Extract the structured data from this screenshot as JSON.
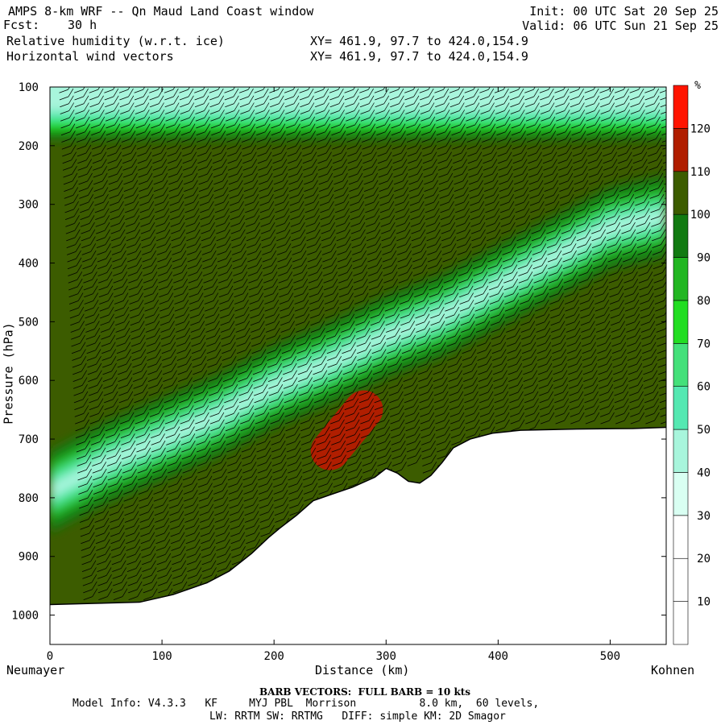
{
  "header": {
    "title": "AMPS 8-km WRF -- Qn Maud Land Coast window",
    "fcst_label": "Fcst:",
    "fcst_value": "30 h",
    "field1": "Relative humidity (w.r.t. ice)",
    "field2": "Horizontal wind vectors",
    "xy1": "XY= 461.9, 97.7 to 424.0,154.9",
    "xy2": "XY= 461.9, 97.7 to 424.0,154.9",
    "init": "Init: 00 UTC Sat 20 Sep 25",
    "valid": "Valid: 06 UTC Sun 21 Sep 25"
  },
  "chart_data": {
    "type": "heatmap",
    "title": "Relative humidity (w.r.t. ice) and horizontal wind vectors cross section",
    "xlabel": "Distance (km)",
    "ylabel": "Pressure (hPa)",
    "x_range": [
      0,
      550
    ],
    "y_range": [
      100,
      1050
    ],
    "x_ticks": [
      0,
      100,
      200,
      300,
      400,
      500
    ],
    "y_ticks": [
      100,
      200,
      300,
      400,
      500,
      600,
      700,
      800,
      900,
      1000
    ],
    "x_start_label": "Neumayer",
    "x_end_label": "Kohnen",
    "colorbar": {
      "unit": "%",
      "levels": [
        10,
        20,
        30,
        40,
        50,
        60,
        70,
        80,
        90,
        100,
        110,
        120
      ],
      "colors": [
        "#ffffff",
        "#ffffff",
        "#ffffff",
        "#d9fff2",
        "#a8f5dc",
        "#55e8b2",
        "#44e07a",
        "#22dd22",
        "#22b622",
        "#127a12",
        "#3c5c00",
        "#b01e00",
        "#ff1400"
      ]
    },
    "terrain_surface": [
      [
        0,
        982
      ],
      [
        40,
        980
      ],
      [
        80,
        978
      ],
      [
        110,
        965
      ],
      [
        140,
        945
      ],
      [
        160,
        925
      ],
      [
        180,
        895
      ],
      [
        195,
        868
      ],
      [
        205,
        852
      ],
      [
        220,
        830
      ],
      [
        235,
        805
      ],
      [
        250,
        795
      ],
      [
        270,
        782
      ],
      [
        290,
        765
      ],
      [
        300,
        750
      ],
      [
        310,
        758
      ],
      [
        320,
        772
      ],
      [
        330,
        775
      ],
      [
        340,
        762
      ],
      [
        350,
        740
      ],
      [
        360,
        715
      ],
      [
        375,
        700
      ],
      [
        395,
        690
      ],
      [
        420,
        685
      ],
      [
        470,
        683
      ],
      [
        520,
        682
      ],
      [
        550,
        680
      ]
    ],
    "moist_band": {
      "description": "Saturated-to-dry layer sloping from surface near Neumayer (~800 hPa) up to ~330 hPa near Kohnen",
      "center": [
        [
          0,
          790
        ],
        [
          50,
          740
        ],
        [
          100,
          700
        ],
        [
          150,
          660
        ],
        [
          200,
          610
        ],
        [
          250,
          570
        ],
        [
          300,
          525
        ],
        [
          350,
          490
        ],
        [
          400,
          440
        ],
        [
          450,
          390
        ],
        [
          500,
          340
        ],
        [
          550,
          320
        ]
      ],
      "min_rh": 40
    },
    "upper_dry_layer": {
      "p_top": 100,
      "p_bottom": 190,
      "min_rh": 40
    },
    "supersaturation_max": [
      [
        250,
        720
      ],
      [
        280,
        650
      ]
    ],
    "barb_spacing_km": 13.4,
    "barb_legend": "BARB VECTORS:  FULL BARB = 10 kts"
  },
  "footer": {
    "barb_note": "BARB VECTORS:  FULL BARB = 10 kts",
    "model_info": "Model Info: V4.3.3   KF     MYJ PBL  Morrison          8.0 km,  60 levels,",
    "physics": "LW: RRTM SW: RRTMG   DIFF: simple KM: 2D Smagor"
  }
}
